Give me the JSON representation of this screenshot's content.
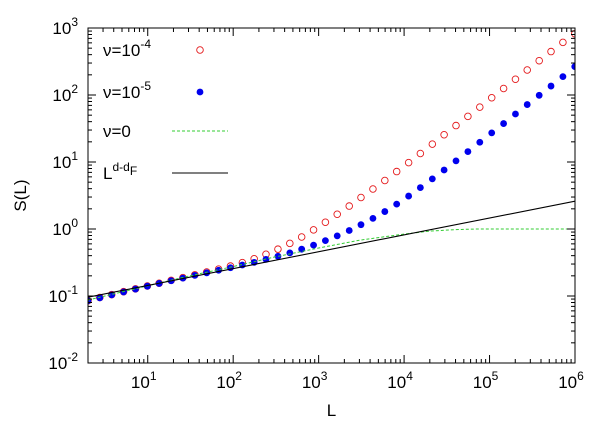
{
  "chart_data": {
    "type": "scatter",
    "title": "",
    "xlabel": "L",
    "ylabel": "S(L)",
    "x_scale": "log",
    "y_scale": "log",
    "xlim": [
      2,
      1000000
    ],
    "ylim": [
      0.01,
      1000
    ],
    "x_ticks": [
      {
        "value": 10,
        "base": "10",
        "exp": "1"
      },
      {
        "value": 100,
        "base": "10",
        "exp": "2"
      },
      {
        "value": 1000,
        "base": "10",
        "exp": "3"
      },
      {
        "value": 10000,
        "base": "10",
        "exp": "4"
      },
      {
        "value": 100000,
        "base": "10",
        "exp": "5"
      },
      {
        "value": 1000000,
        "base": "10",
        "exp": "6"
      }
    ],
    "y_ticks": [
      {
        "value": 0.01,
        "base": "10",
        "exp": "-2"
      },
      {
        "value": 0.1,
        "base": "10",
        "exp": "-1"
      },
      {
        "value": 1,
        "base": "10",
        "exp": "0"
      },
      {
        "value": 10,
        "base": "10",
        "exp": "1"
      },
      {
        "value": 100,
        "base": "10",
        "exp": "2"
      },
      {
        "value": 1000,
        "base": "10",
        "exp": "3"
      }
    ],
    "legend_position": "top-left",
    "series": [
      {
        "name": "ν=10⁻⁴",
        "label_base": "ν=10",
        "label_exp": "-4",
        "style": "open-circle",
        "color": "#e41a1c",
        "x": [
          2,
          2.75,
          3.79,
          5.22,
          7.19,
          9.9,
          13.6,
          18.8,
          25.8,
          35.6,
          49,
          67.5,
          92.9,
          128,
          176,
          242,
          334,
          460,
          633,
          872,
          1200,
          1650,
          2280,
          3130,
          4320,
          5950,
          8190,
          11300,
          15500,
          21400,
          29400,
          40500,
          55800,
          76900,
          106000,
          146000,
          201000,
          276000,
          381000,
          524000,
          722000,
          994000
        ],
        "y": [
          0.085,
          0.095,
          0.105,
          0.116,
          0.128,
          0.141,
          0.155,
          0.171,
          0.188,
          0.207,
          0.228,
          0.252,
          0.28,
          0.315,
          0.36,
          0.42,
          0.5,
          0.61,
          0.76,
          0.97,
          1.26,
          1.66,
          2.2,
          2.95,
          3.95,
          5.3,
          7.2,
          9.8,
          13.4,
          18.5,
          25.5,
          35,
          48,
          66,
          91,
          125,
          172,
          236,
          325,
          445,
          610,
          820
        ]
      },
      {
        "name": "ν=10⁻⁵",
        "label_base": "ν=10",
        "label_exp": "-5",
        "style": "filled-circle",
        "color": "#0000ee",
        "x": [
          2,
          2.75,
          3.79,
          5.22,
          7.19,
          9.9,
          13.6,
          18.8,
          25.8,
          35.6,
          49,
          67.5,
          92.9,
          128,
          176,
          242,
          334,
          460,
          633,
          872,
          1200,
          1650,
          2280,
          3130,
          4320,
          5950,
          8190,
          11300,
          15500,
          21400,
          29400,
          40500,
          55800,
          76900,
          106000,
          146000,
          201000,
          276000,
          381000,
          524000,
          722000,
          994000
        ],
        "y": [
          0.085,
          0.094,
          0.104,
          0.115,
          0.127,
          0.14,
          0.154,
          0.169,
          0.185,
          0.203,
          0.222,
          0.242,
          0.264,
          0.29,
          0.318,
          0.352,
          0.392,
          0.44,
          0.5,
          0.575,
          0.67,
          0.79,
          0.95,
          1.16,
          1.44,
          1.82,
          2.35,
          3.1,
          4.15,
          5.6,
          7.6,
          10.4,
          14.3,
          19.7,
          27.2,
          37.5,
          52,
          72,
          99,
          136,
          188,
          265
        ]
      },
      {
        "name": "ν=0",
        "style": "dashed-line",
        "color": "#33cc33",
        "x": [
          2,
          5,
          10,
          30,
          100,
          300,
          1000,
          3000,
          10000,
          20000,
          40000,
          70000,
          150000,
          400000,
          1000000
        ],
        "y": [
          0.087,
          0.115,
          0.142,
          0.198,
          0.275,
          0.38,
          0.52,
          0.68,
          0.84,
          0.93,
          0.98,
          1.0,
          1.0,
          1.0,
          1.0
        ]
      },
      {
        "name": "L^{d-d_F}",
        "label_base": "L",
        "label_exp": "d-d",
        "label_sub": "F",
        "style": "solid-line",
        "color": "#000000",
        "x": [
          2,
          1000000
        ],
        "y": [
          0.096,
          2.6
        ]
      }
    ]
  }
}
